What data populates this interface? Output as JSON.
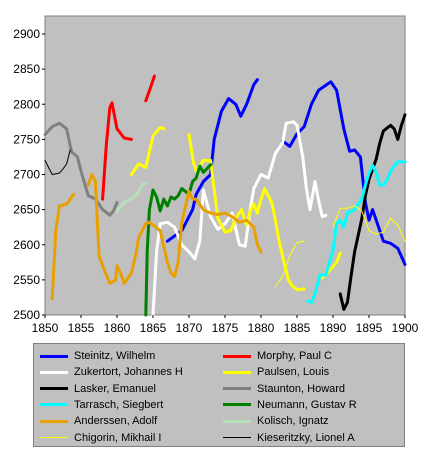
{
  "chart_data": {
    "type": "line",
    "x": [
      1850,
      1855,
      1860,
      1865,
      1870,
      1875,
      1880,
      1885,
      1890,
      1895,
      1900
    ],
    "xlim": [
      1850,
      1900
    ],
    "ylim": [
      2500,
      2900
    ],
    "x_ticks": [
      "1850",
      "1855",
      "1860",
      "1865",
      "1870",
      "1875",
      "1880",
      "1885",
      "1890",
      "1895",
      "1900"
    ],
    "y_ticks": [
      "2500",
      "2550",
      "2600",
      "2650",
      "2700",
      "2750",
      "2800",
      "2850",
      "2900"
    ],
    "grid": false,
    "legend_position": "bottom",
    "series": [
      {
        "name": "Steinitz, Wilhelm",
        "color": "#0000ff",
        "points": [
          [
            1867,
            2605
          ],
          [
            1869,
            2620
          ],
          [
            1870.5,
            2650
          ],
          [
            1871,
            2672
          ],
          [
            1872,
            2690
          ],
          [
            1873,
            2700
          ],
          [
            1873.5,
            2750
          ],
          [
            1874.5,
            2790
          ],
          [
            1875.5,
            2808
          ],
          [
            1876.5,
            2800
          ],
          [
            1877.2,
            2783
          ],
          [
            1878,
            2800
          ],
          [
            1879,
            2828
          ],
          [
            1879.5,
            2835
          ],
          null,
          [
            1883,
            2748
          ],
          [
            1884,
            2740
          ],
          [
            1885,
            2758
          ],
          [
            1886,
            2768
          ],
          [
            1887,
            2800
          ],
          [
            1888,
            2820
          ],
          [
            1889,
            2827
          ],
          [
            1889.7,
            2832
          ],
          [
            1890.5,
            2820
          ],
          [
            1891.5,
            2765
          ],
          [
            1892.3,
            2733
          ],
          [
            1893,
            2735
          ],
          [
            1893.8,
            2725
          ],
          [
            1894.5,
            2660
          ],
          [
            1895,
            2635
          ],
          [
            1895.5,
            2650
          ],
          [
            1896,
            2635
          ],
          [
            1897,
            2605
          ],
          [
            1898,
            2602
          ],
          [
            1899,
            2595
          ],
          [
            1900,
            2572
          ]
        ]
      },
      {
        "name": "Morphy, Paul C",
        "color": "#ff0000",
        "points": [
          [
            1858,
            2665
          ],
          [
            1858.5,
            2740
          ],
          [
            1859,
            2795
          ],
          [
            1859.3,
            2802
          ],
          [
            1860,
            2765
          ],
          [
            1861,
            2752
          ],
          [
            1862,
            2750
          ],
          null,
          [
            1864,
            2805
          ],
          [
            1864.6,
            2822
          ],
          [
            1865.2,
            2840
          ]
        ]
      },
      {
        "name": "Zukertort, Johannes H",
        "color": "#ffffff",
        "points": [
          [
            1865,
            2500
          ],
          [
            1865.5,
            2590
          ],
          [
            1866,
            2630
          ],
          [
            1867,
            2632
          ],
          [
            1868,
            2625
          ],
          [
            1869,
            2600
          ],
          [
            1870,
            2590
          ],
          [
            1870.8,
            2580
          ],
          [
            1871.5,
            2605
          ],
          [
            1872,
            2678
          ],
          [
            1873,
            2640
          ],
          [
            1874,
            2622
          ],
          [
            1875,
            2630
          ],
          [
            1876,
            2645
          ],
          [
            1877,
            2600
          ],
          [
            1877.8,
            2598
          ],
          [
            1878.5,
            2650
          ],
          [
            1879,
            2680
          ],
          [
            1880,
            2700
          ],
          [
            1881,
            2695
          ],
          [
            1882,
            2730
          ],
          [
            1883,
            2745
          ],
          [
            1883.5,
            2773
          ],
          [
            1884.5,
            2775
          ],
          [
            1885,
            2770
          ],
          [
            1885.8,
            2725
          ],
          [
            1886.3,
            2680
          ],
          [
            1886.8,
            2650
          ],
          [
            1887.5,
            2690
          ],
          [
            1888,
            2663
          ],
          [
            1888.5,
            2640
          ],
          [
            1889,
            2642
          ]
        ]
      },
      {
        "name": "Paulsen, Louis",
        "color": "#ffff00",
        "points": [
          [
            1862,
            2700
          ],
          [
            1863,
            2715
          ],
          [
            1864,
            2710
          ],
          [
            1865,
            2755
          ],
          [
            1866,
            2767
          ],
          [
            1866.5,
            2765
          ],
          null,
          [
            1870,
            2757
          ],
          [
            1870.6,
            2718
          ],
          [
            1871,
            2705
          ],
          [
            1872,
            2720
          ],
          [
            1873,
            2720
          ],
          [
            1874,
            2638
          ],
          [
            1875,
            2618
          ],
          [
            1875.8,
            2620
          ],
          [
            1876.5,
            2638
          ],
          [
            1877.3,
            2650
          ],
          [
            1878,
            2628
          ],
          [
            1878.5,
            2648
          ],
          [
            1879,
            2658
          ],
          [
            1879.5,
            2645
          ],
          [
            1880,
            2665
          ],
          [
            1880.5,
            2680
          ],
          [
            1881.5,
            2660
          ],
          [
            1882,
            2635
          ],
          [
            1882.5,
            2606
          ],
          [
            1883.2,
            2575
          ],
          [
            1883.8,
            2550
          ],
          [
            1884.3,
            2542
          ],
          [
            1885,
            2536
          ],
          [
            1886,
            2537
          ],
          null,
          [
            1888.5,
            2553
          ],
          [
            1889.5,
            2563
          ],
          [
            1890.5,
            2575
          ],
          [
            1891,
            2588
          ]
        ]
      },
      {
        "name": "Lasker, Emanuel",
        "color": "#000000",
        "points": [
          [
            1891,
            2530
          ],
          [
            1891.5,
            2508
          ],
          [
            1892,
            2518
          ],
          [
            1892.5,
            2555
          ],
          [
            1893,
            2590
          ],
          [
            1894,
            2637
          ],
          [
            1894.5,
            2670
          ],
          [
            1895,
            2693
          ],
          [
            1896,
            2722
          ],
          [
            1896.5,
            2745
          ],
          [
            1897,
            2762
          ],
          [
            1898,
            2770
          ],
          [
            1898.5,
            2765
          ],
          [
            1899,
            2750
          ],
          [
            1899.5,
            2770
          ],
          [
            1900,
            2785
          ]
        ]
      },
      {
        "name": "Staunton, Howard",
        "color": "#808080",
        "points": [
          [
            1850,
            2757
          ],
          [
            1851,
            2768
          ],
          [
            1852,
            2773
          ],
          [
            1853,
            2765
          ],
          [
            1853.7,
            2732
          ],
          [
            1854.5,
            2725
          ],
          [
            1855,
            2705
          ],
          [
            1856,
            2670
          ],
          [
            1857,
            2665
          ],
          [
            1858,
            2650
          ],
          [
            1859,
            2642
          ],
          [
            1859.5,
            2648
          ],
          [
            1860,
            2660
          ]
        ]
      },
      {
        "name": "Tarrasch, Siegbert",
        "color": "#00ffff",
        "points": [
          [
            1886.5,
            2520
          ],
          [
            1887,
            2518
          ],
          [
            1887.5,
            2530
          ],
          [
            1888.2,
            2557
          ],
          [
            1889,
            2557
          ],
          [
            1890,
            2592
          ],
          [
            1890.5,
            2630
          ],
          [
            1891,
            2635
          ],
          [
            1891.5,
            2625
          ],
          [
            1892,
            2645
          ],
          [
            1893,
            2650
          ],
          [
            1894,
            2665
          ],
          [
            1894.5,
            2685
          ],
          [
            1895,
            2702
          ],
          [
            1895.5,
            2713
          ],
          [
            1896,
            2703
          ],
          [
            1896.5,
            2685
          ],
          [
            1897,
            2685
          ],
          [
            1897.5,
            2692
          ],
          [
            1898,
            2705
          ],
          [
            1898.5,
            2712
          ],
          [
            1899,
            2718
          ],
          [
            1900,
            2718
          ]
        ]
      },
      {
        "name": "Neumann, Gustav R",
        "color": "#008000",
        "points": [
          [
            1864,
            2500
          ],
          [
            1864.2,
            2590
          ],
          [
            1864.5,
            2650
          ],
          [
            1865,
            2678
          ],
          [
            1865.5,
            2668
          ],
          [
            1866,
            2648
          ],
          [
            1866.5,
            2665
          ],
          [
            1867,
            2655
          ],
          [
            1867.5,
            2668
          ],
          [
            1868,
            2665
          ],
          [
            1868.5,
            2670
          ],
          [
            1869,
            2680
          ],
          [
            1870,
            2672
          ],
          [
            1870.5,
            2690
          ],
          [
            1871,
            2695
          ],
          [
            1871.5,
            2712
          ],
          [
            1872,
            2703
          ],
          [
            1873,
            2714
          ]
        ]
      },
      {
        "name": "Anderssen, Adolf",
        "color": "#e8a000",
        "points": [
          [
            1851,
            2523
          ],
          [
            1851.5,
            2620
          ],
          [
            1852,
            2655
          ],
          [
            1853,
            2658
          ],
          [
            1854,
            2672
          ],
          null,
          [
            1856,
            2685
          ],
          [
            1856.5,
            2700
          ],
          [
            1857,
            2690
          ],
          [
            1857.5,
            2585
          ],
          [
            1858,
            2570
          ],
          [
            1859,
            2545
          ],
          [
            1859.8,
            2550
          ],
          [
            1860,
            2570
          ],
          [
            1860.5,
            2560
          ],
          [
            1861,
            2545
          ],
          [
            1862,
            2560
          ],
          [
            1862.7,
            2590
          ],
          [
            1863,
            2610
          ],
          [
            1864,
            2630
          ],
          [
            1864.5,
            2632
          ],
          [
            1865,
            2628
          ],
          [
            1866,
            2620
          ],
          [
            1867,
            2575
          ],
          [
            1867.5,
            2560
          ],
          [
            1868,
            2555
          ],
          [
            1868.5,
            2575
          ],
          [
            1869,
            2632
          ],
          [
            1870,
            2676
          ],
          [
            1870.5,
            2665
          ],
          [
            1871,
            2665
          ],
          [
            1872,
            2650
          ],
          [
            1873,
            2645
          ],
          [
            1874,
            2643
          ],
          [
            1875,
            2645
          ],
          [
            1876,
            2640
          ],
          [
            1877,
            2632
          ],
          [
            1878,
            2635
          ],
          [
            1879,
            2625
          ],
          [
            1879.5,
            2600
          ],
          [
            1880,
            2590
          ]
        ]
      },
      {
        "name": "Kolisch, Ignatz",
        "color": "#b8e0b8",
        "points": [
          [
            1860,
            2648
          ],
          [
            1861,
            2660
          ],
          [
            1862,
            2665
          ],
          [
            1863,
            2675
          ],
          [
            1863.5,
            2685
          ],
          [
            1864,
            2688
          ]
        ]
      },
      {
        "name": "Chigorin, Mikhail I",
        "color": "#ffff00",
        "thin": true,
        "points": [
          [
            1882,
            2540
          ],
          [
            1883,
            2555
          ],
          [
            1883.5,
            2570
          ],
          [
            1884,
            2585
          ],
          [
            1885,
            2603
          ],
          [
            1886,
            2605
          ],
          null,
          [
            1890,
            2625
          ],
          [
            1891,
            2652
          ],
          [
            1892,
            2652
          ],
          [
            1893,
            2655
          ],
          [
            1894,
            2648
          ],
          [
            1895,
            2620
          ],
          [
            1896,
            2615
          ],
          [
            1897,
            2618
          ],
          [
            1898,
            2638
          ],
          [
            1899,
            2628
          ],
          [
            1900,
            2605
          ]
        ]
      },
      {
        "name": "Kieseritzky, Lionel A",
        "color": "#000000",
        "thin": true,
        "points": [
          [
            1850,
            2720
          ],
          [
            1850.5,
            2710
          ],
          [
            1851,
            2700
          ],
          [
            1852,
            2702
          ],
          [
            1852.5,
            2708
          ],
          [
            1853,
            2715
          ],
          [
            1853.5,
            2735
          ]
        ]
      }
    ]
  }
}
